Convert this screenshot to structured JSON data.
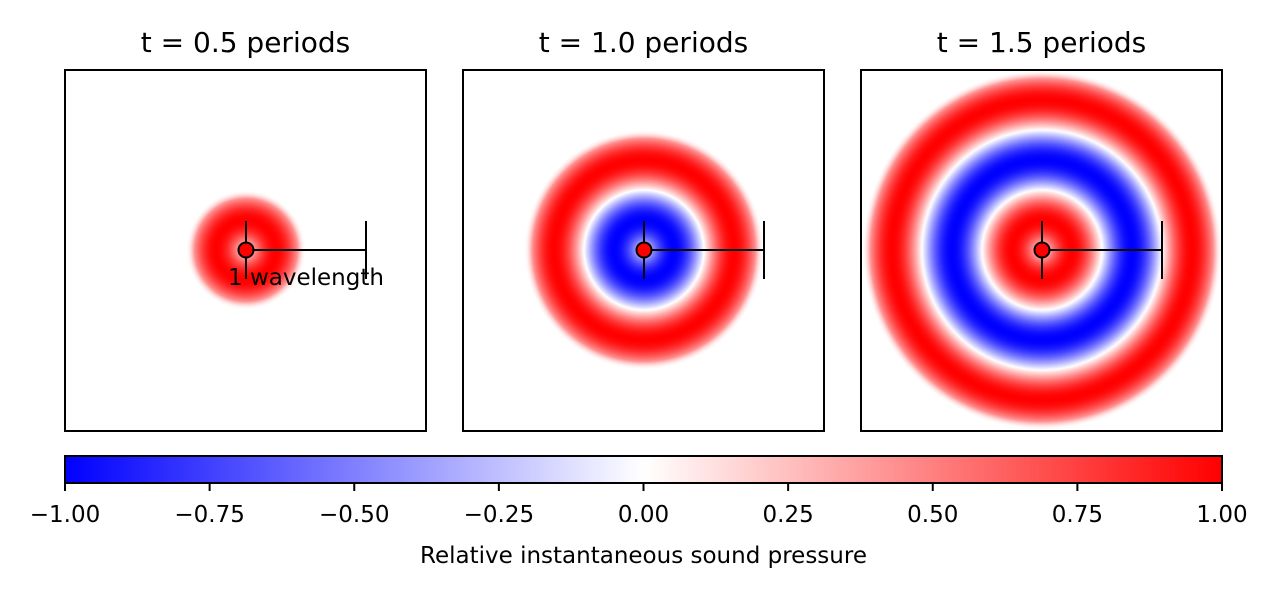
{
  "chart_data": [
    {
      "type": "heatmap",
      "title": "t = 0.5 periods",
      "time_periods": 0.5,
      "wavelengths_emitted": 0.5,
      "source": {
        "x": 0,
        "y": 0
      },
      "scale_bar": {
        "length_wavelengths": 1,
        "label": "1 wavelength"
      },
      "rings": [
        {
          "from_wavelength": 0.0,
          "to_wavelength": 0.5,
          "sign": "positive"
        }
      ]
    },
    {
      "type": "heatmap",
      "title": "t = 1.0 periods",
      "time_periods": 1.0,
      "wavelengths_emitted": 1.0,
      "source": {
        "x": 0,
        "y": 0
      },
      "scale_bar": {
        "length_wavelengths": 1,
        "label": ""
      },
      "rings": [
        {
          "from_wavelength": 0.0,
          "to_wavelength": 0.5,
          "sign": "negative"
        },
        {
          "from_wavelength": 0.5,
          "to_wavelength": 1.0,
          "sign": "positive"
        }
      ]
    },
    {
      "type": "heatmap",
      "title": "t = 1.5 periods",
      "time_periods": 1.5,
      "wavelengths_emitted": 1.5,
      "source": {
        "x": 0,
        "y": 0
      },
      "scale_bar": {
        "length_wavelengths": 1,
        "label": ""
      },
      "rings": [
        {
          "from_wavelength": 0.0,
          "to_wavelength": 0.5,
          "sign": "positive"
        },
        {
          "from_wavelength": 0.5,
          "to_wavelength": 1.0,
          "sign": "negative"
        },
        {
          "from_wavelength": 1.0,
          "to_wavelength": 1.5,
          "sign": "positive"
        }
      ]
    }
  ],
  "colorbar": {
    "label": "Relative instantaneous sound pressure",
    "colormap": "bwr",
    "range": [
      -1.0,
      1.0
    ],
    "ticks": [
      -1.0,
      -0.75,
      -0.5,
      -0.25,
      0.0,
      0.25,
      0.5,
      0.75,
      1.0
    ],
    "tick_labels": [
      "−1.00",
      "−0.75",
      "−0.50",
      "−0.25",
      "0.00",
      "0.25",
      "0.50",
      "0.75",
      "1.00"
    ]
  },
  "colors": {
    "negative": "#0000ff",
    "zero": "#ffffff",
    "positive": "#ff0000",
    "frame": "#000000"
  }
}
